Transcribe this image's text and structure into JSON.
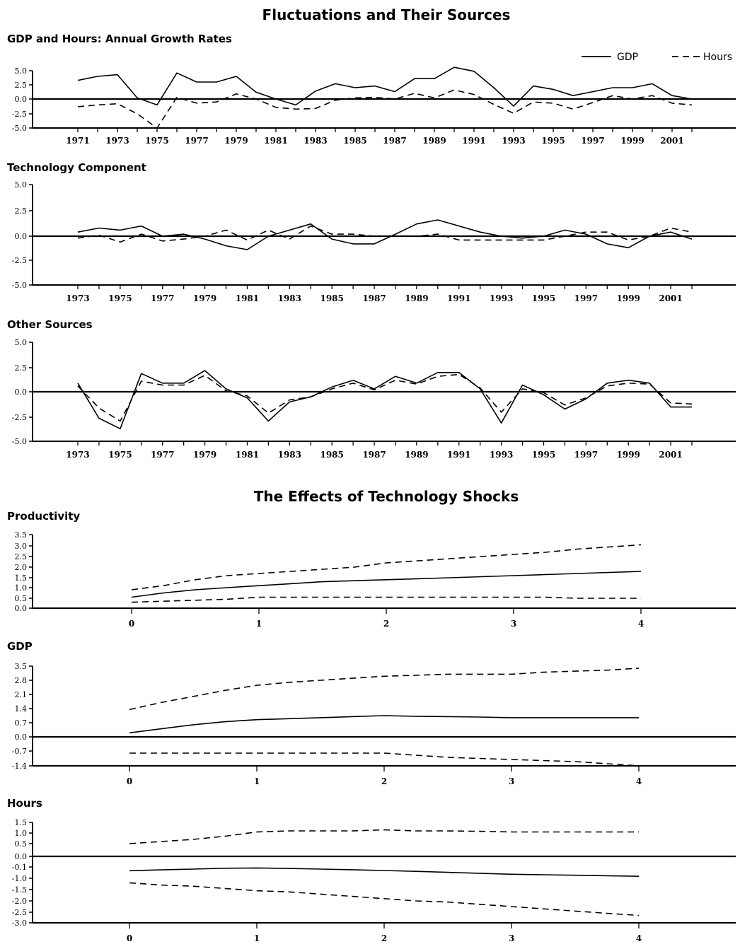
{
  "figure": {
    "section_titles": [
      "Fluctuations and Their Sources",
      "The Effects of Technology Shocks"
    ]
  },
  "chart_data": [
    {
      "type": "line",
      "title": "GDP and Hours: Annual Growth Rates",
      "x": [
        1971,
        1972,
        1973,
        1974,
        1975,
        1976,
        1977,
        1978,
        1979,
        1980,
        1981,
        1982,
        1983,
        1984,
        1985,
        1986,
        1987,
        1988,
        1989,
        1990,
        1991,
        1992,
        1993,
        1994,
        1995,
        1996,
        1997,
        1998,
        1999,
        2000,
        2001,
        2002
      ],
      "x_tick_labels": [
        "1971",
        "1973",
        "1975",
        "1977",
        "1979",
        "1981",
        "1983",
        "1985",
        "1987",
        "1989",
        "1991",
        "1993",
        "1995",
        "1997",
        "1999",
        "2001"
      ],
      "y_tick_labels": [
        "5.0",
        "2.5",
        "0.0",
        "-2.5",
        "-5.0"
      ],
      "ylim": [
        -5.0,
        5.0
      ],
      "legend_position": "top-right",
      "series": [
        {
          "name": "GDP",
          "style": "solid",
          "values": [
            3.3,
            4.0,
            4.3,
            0.2,
            -1.0,
            4.6,
            3.0,
            3.0,
            4.0,
            1.2,
            0.0,
            -1.0,
            1.4,
            2.7,
            2.0,
            2.3,
            1.3,
            3.6,
            3.6,
            5.6,
            4.9,
            2.0,
            -1.2,
            2.3,
            1.7,
            0.6,
            1.3,
            2.0,
            2.0,
            2.7,
            0.6,
            0.0
          ]
        },
        {
          "name": "Hours",
          "style": "dashed",
          "values": [
            -1.3,
            -1.0,
            -0.8,
            -2.5,
            -5.0,
            0.3,
            -0.7,
            -0.5,
            0.9,
            0.0,
            -1.4,
            -1.7,
            -1.6,
            -0.2,
            0.2,
            0.3,
            0.0,
            1.0,
            0.2,
            1.6,
            0.8,
            -0.9,
            -2.4,
            -0.5,
            -0.7,
            -1.7,
            -0.6,
            0.6,
            0.0,
            0.6,
            -0.7,
            -1.0
          ]
        }
      ]
    },
    {
      "type": "line",
      "title": "Technology Component",
      "x": [
        1973,
        1974,
        1975,
        1976,
        1977,
        1978,
        1979,
        1980,
        1981,
        1982,
        1983,
        1984,
        1985,
        1986,
        1987,
        1988,
        1989,
        1990,
        1991,
        1992,
        1993,
        1994,
        1995,
        1996,
        1997,
        1998,
        1999,
        2000,
        2001,
        2002
      ],
      "x_tick_labels": [
        "1973",
        "1975",
        "1977",
        "1979",
        "1981",
        "1983",
        "1985",
        "1987",
        "1989",
        "1991",
        "1993",
        "1995",
        "1997",
        "1999",
        "2001"
      ],
      "y_tick_labels": [
        "5.0",
        "2.5",
        "0.0",
        "-2.5",
        "-5.0"
      ],
      "ylim": [
        -5.0,
        5.0
      ],
      "series": [
        {
          "name": "GDP",
          "style": "solid",
          "values": [
            0.4,
            0.8,
            0.6,
            1.0,
            0.0,
            0.2,
            -0.3,
            -1.0,
            -1.4,
            0.0,
            0.6,
            1.2,
            -0.3,
            -0.8,
            -0.8,
            0.2,
            1.2,
            1.6,
            1.0,
            0.4,
            0.0,
            -0.2,
            0.0,
            0.6,
            0.2,
            -0.8,
            -1.2,
            0.0,
            0.4,
            -0.3
          ]
        },
        {
          "name": "Hours",
          "style": "dashed",
          "values": [
            -0.2,
            0.1,
            -0.6,
            0.2,
            -0.5,
            -0.3,
            0.0,
            0.6,
            -0.4,
            0.6,
            -0.3,
            1.0,
            0.2,
            0.2,
            0.0,
            0.0,
            0.0,
            0.2,
            -0.4,
            -0.4,
            -0.4,
            -0.4,
            -0.4,
            0.0,
            0.4,
            0.4,
            -0.4,
            0.0,
            0.8,
            0.4
          ]
        }
      ]
    },
    {
      "type": "line",
      "title": "Other Sources",
      "x": [
        1973,
        1974,
        1975,
        1976,
        1977,
        1978,
        1979,
        1980,
        1981,
        1982,
        1983,
        1984,
        1985,
        1986,
        1987,
        1988,
        1989,
        1990,
        1991,
        1992,
        1993,
        1994,
        1995,
        1996,
        1997,
        1998,
        1999,
        2000,
        2001,
        2002
      ],
      "x_tick_labels": [
        "1973",
        "1975",
        "1977",
        "1979",
        "1981",
        "1983",
        "1985",
        "1987",
        "1989",
        "1991",
        "1993",
        "1995",
        "1997",
        "1999",
        "2001"
      ],
      "y_tick_labels": [
        "5.0",
        "2.5",
        "0.0",
        "-2.5",
        "-5.0"
      ],
      "ylim": [
        -5.0,
        5.0
      ],
      "series": [
        {
          "name": "GDP",
          "style": "solid",
          "values": [
            0.9,
            -2.6,
            -3.7,
            1.9,
            0.9,
            0.9,
            2.2,
            0.3,
            -0.6,
            -2.9,
            -1.0,
            -0.5,
            0.5,
            1.2,
            0.3,
            1.6,
            0.9,
            2.0,
            2.0,
            0.3,
            -3.1,
            0.7,
            -0.3,
            -1.7,
            -0.7,
            0.9,
            1.2,
            0.9,
            -1.5,
            -1.5
          ]
        },
        {
          "name": "Hours",
          "style": "dashed",
          "values": [
            0.6,
            -1.6,
            -2.9,
            1.1,
            0.7,
            0.7,
            1.7,
            0.1,
            -0.4,
            -2.1,
            -0.8,
            -0.5,
            0.3,
            0.9,
            0.2,
            1.2,
            0.8,
            1.6,
            1.8,
            0.4,
            -2.0,
            0.3,
            -0.1,
            -1.3,
            -0.6,
            0.6,
            0.9,
            0.8,
            -1.1,
            -1.2
          ]
        }
      ]
    },
    {
      "type": "line",
      "title": "Productivity",
      "x": [
        0,
        0.25,
        0.5,
        0.75,
        1,
        1.25,
        1.5,
        1.75,
        2,
        2.25,
        2.5,
        2.75,
        3,
        3.25,
        3.5,
        3.75,
        4
      ],
      "x_tick_labels": [
        "0",
        "1",
        "2",
        "3",
        "4"
      ],
      "y_tick_labels": [
        "3.5",
        "3.0",
        "2.5",
        "2.0",
        "1.5",
        "1.0",
        "0.5",
        "0.0"
      ],
      "ylim": [
        0.0,
        3.5
      ],
      "series": [
        {
          "style": "solid",
          "values": [
            0.55,
            0.75,
            0.9,
            1.0,
            1.1,
            1.2,
            1.3,
            1.35,
            1.4,
            1.45,
            1.5,
            1.55,
            1.6,
            1.65,
            1.7,
            1.75,
            1.8
          ]
        },
        {
          "style": "dashed",
          "values": [
            0.9,
            1.1,
            1.4,
            1.6,
            1.7,
            1.8,
            1.9,
            2.0,
            2.2,
            2.3,
            2.4,
            2.5,
            2.6,
            2.7,
            2.85,
            2.95,
            3.05
          ]
        },
        {
          "style": "dashed",
          "values": [
            0.3,
            0.35,
            0.4,
            0.45,
            0.55,
            0.55,
            0.55,
            0.55,
            0.55,
            0.55,
            0.55,
            0.55,
            0.55,
            0.55,
            0.5,
            0.5,
            0.5
          ]
        }
      ]
    },
    {
      "type": "line",
      "title": "GDP",
      "x": [
        0,
        0.25,
        0.5,
        0.75,
        1,
        1.25,
        1.5,
        1.75,
        2,
        2.25,
        2.5,
        2.75,
        3,
        3.25,
        3.5,
        3.75,
        4
      ],
      "x_tick_labels": [
        "0",
        "1",
        "2",
        "3",
        "4"
      ],
      "y_tick_labels": [
        "3.5",
        "2.8",
        "2.1",
        "1.4",
        "0.7",
        "0.0",
        "-0.7",
        "-1.4"
      ],
      "ylim": [
        -1.4,
        3.5
      ],
      "series": [
        {
          "style": "solid",
          "values": [
            0.2,
            0.4,
            0.6,
            0.75,
            0.85,
            0.9,
            0.95,
            1.0,
            1.05,
            1.02,
            1.0,
            0.98,
            0.95,
            0.95,
            0.95,
            0.95,
            0.95
          ]
        },
        {
          "style": "dashed",
          "values": [
            1.35,
            1.7,
            2.0,
            2.3,
            2.55,
            2.7,
            2.8,
            2.9,
            3.0,
            3.05,
            3.1,
            3.1,
            3.1,
            3.2,
            3.25,
            3.3,
            3.4
          ]
        },
        {
          "style": "dashed",
          "values": [
            -0.8,
            -0.8,
            -0.8,
            -0.8,
            -0.8,
            -0.8,
            -0.8,
            -0.8,
            -0.8,
            -0.9,
            -1.0,
            -1.05,
            -1.1,
            -1.15,
            -1.2,
            -1.3,
            -1.4
          ]
        }
      ]
    },
    {
      "type": "line",
      "title": "Hours",
      "x": [
        0,
        0.25,
        0.5,
        0.75,
        1,
        1.25,
        1.5,
        1.75,
        2,
        2.25,
        2.5,
        2.75,
        3,
        3.25,
        3.5,
        3.75,
        4
      ],
      "x_tick_labels": [
        "0",
        "1",
        "2",
        "3",
        "4"
      ],
      "y_tick_labels": [
        "1.5",
        "1.0",
        "0.5",
        "0.0",
        "-0.1",
        "-1.0",
        "-1.5",
        "-2.0",
        "-2.5",
        "-3.0"
      ],
      "ylim": [
        -3.0,
        1.5
      ],
      "series": [
        {
          "style": "solid",
          "values": [
            -0.4,
            -0.33,
            -0.27,
            -0.2,
            -0.18,
            -0.22,
            -0.27,
            -0.32,
            -0.38,
            -0.45,
            -0.53,
            -0.6,
            -0.68,
            -0.72,
            -0.76,
            -0.8,
            -0.84
          ]
        },
        {
          "style": "dashed",
          "values": [
            0.5,
            0.6,
            0.7,
            0.85,
            1.05,
            1.1,
            1.1,
            1.1,
            1.15,
            1.1,
            1.1,
            1.08,
            1.05,
            1.05,
            1.05,
            1.05,
            1.05
          ]
        },
        {
          "style": "dashed",
          "values": [
            -1.2,
            -1.3,
            -1.35,
            -1.45,
            -1.55,
            -1.6,
            -1.7,
            -1.8,
            -1.9,
            -2.0,
            -2.05,
            -2.15,
            -2.25,
            -2.35,
            -2.45,
            -2.55,
            -2.65
          ]
        }
      ]
    }
  ]
}
